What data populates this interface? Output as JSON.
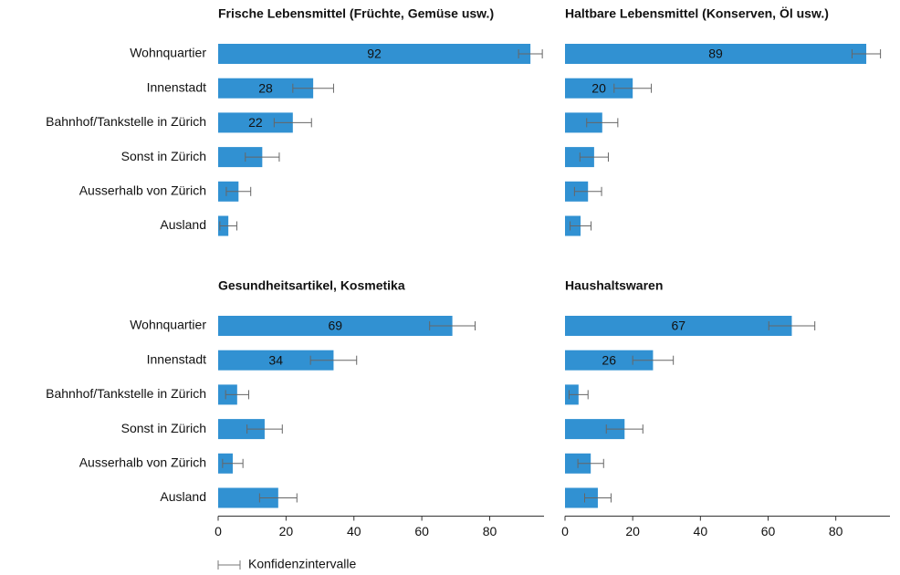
{
  "chart_data": [
    {
      "type": "bar",
      "title": "Frische Lebensmittel (Früchte, Gemüse usw.)",
      "categories": [
        "Wohnquartier",
        "Innenstadt",
        "Bahnhof/Tankstelle in Zürich",
        "Sonst in Zürich",
        "Ausserhalb von Zürich",
        "Ausland"
      ],
      "values": [
        92,
        28,
        22,
        13,
        6,
        3
      ],
      "errors": [
        3.5,
        6,
        5.5,
        5,
        3.6,
        2.5
      ],
      "color": "#3191d2",
      "xlim": [
        0,
        96
      ]
    },
    {
      "type": "bar",
      "title": "Haltbare Lebensmittel (Konserven, Öl usw.)",
      "values": [
        89,
        20,
        11,
        8.6,
        6.8,
        4.6
      ],
      "errors": [
        4.2,
        5.5,
        4.6,
        4.2,
        4,
        3.1
      ],
      "color": "#3191d2",
      "xlim": [
        0,
        96
      ]
    },
    {
      "type": "bar",
      "title": "Gesundheitsartikel, Kosmetika",
      "categories": [
        "Wohnquartier",
        "Innenstadt",
        "Bahnhof/Tankstelle in Zürich",
        "Sonst in Zürich",
        "Ausserhalb von Zürich",
        "Ausland"
      ],
      "values": [
        69,
        34,
        5.6,
        13.7,
        4.3,
        17.7
      ],
      "errors": [
        6.7,
        6.8,
        3.4,
        5.2,
        3,
        5.5
      ],
      "color": "#3191d2",
      "xlim": [
        0,
        96
      ],
      "xticks": [
        0,
        20,
        40,
        60,
        80
      ]
    },
    {
      "type": "bar",
      "title": "Haushaltswaren",
      "values": [
        67,
        26,
        4,
        17.6,
        7.6,
        9.7
      ],
      "errors": [
        6.8,
        6,
        2.8,
        5.4,
        3.8,
        3.9
      ],
      "color": "#3191d2",
      "xlim": [
        0,
        96
      ],
      "xticks": [
        0,
        20,
        40,
        60,
        80
      ]
    }
  ],
  "legend": {
    "label": "Konfidenzintervalle"
  }
}
